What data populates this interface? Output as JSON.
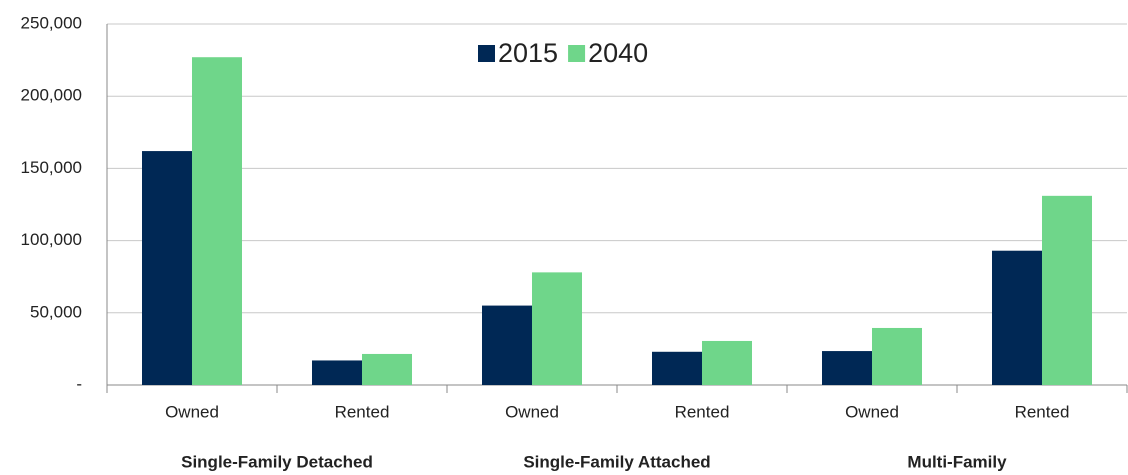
{
  "chart_data": {
    "type": "bar",
    "categories": [
      "Owned",
      "Rented",
      "Owned",
      "Rented",
      "Owned",
      "Rented"
    ],
    "groups": [
      "Single-Family Detached",
      "Single-Family Attached",
      "Multi-Family"
    ],
    "series": [
      {
        "name": "2015",
        "color": "#002855",
        "values": [
          162000,
          17000,
          55000,
          23000,
          23500,
          93000
        ]
      },
      {
        "name": "2040",
        "color": "#6fd68a",
        "values": [
          227000,
          21500,
          78000,
          30500,
          39500,
          131000
        ]
      }
    ],
    "ylim": [
      0,
      250000
    ],
    "yticks": [
      {
        "value": 0,
        "label": "-"
      },
      {
        "value": 50000,
        "label": "50,000"
      },
      {
        "value": 100000,
        "label": "100,000"
      },
      {
        "value": 150000,
        "label": "150,000"
      },
      {
        "value": 200000,
        "label": "200,000"
      },
      {
        "value": 250000,
        "label": "250,000"
      }
    ],
    "grid": true
  }
}
